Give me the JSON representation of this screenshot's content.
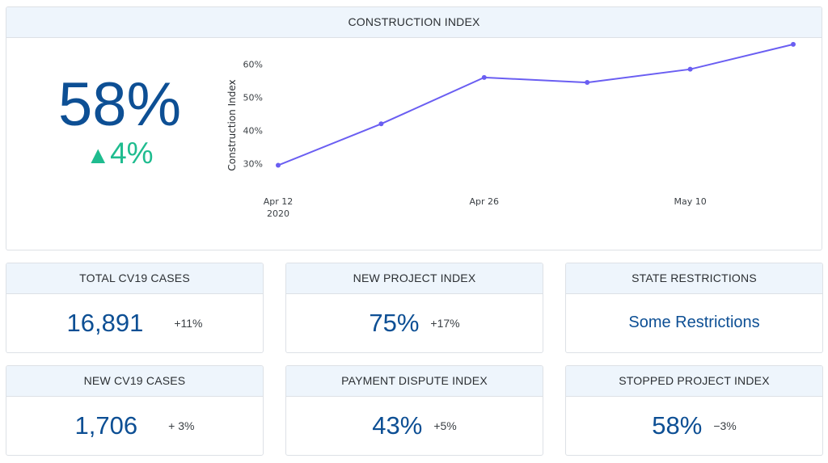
{
  "colors": {
    "accent": "#0d4f94",
    "positive": "#1fbc8f",
    "line": "#6a5ef2",
    "header_bg": "#eef5fc"
  },
  "main": {
    "title": "CONSTRUCTION INDEX",
    "value": "58%",
    "change_arrow": "▲",
    "change": "4%"
  },
  "chart_data": {
    "type": "line",
    "title": "",
    "xlabel": "",
    "ylabel": "Construction Index",
    "x": [
      "2020-04-12",
      "2020-04-19",
      "2020-04-26",
      "2020-05-03",
      "2020-05-10",
      "2020-05-17"
    ],
    "series": [
      {
        "values": [
          29.5,
          42,
          56,
          54.5,
          58.5,
          66
        ]
      }
    ],
    "xticks": [
      {
        "date": "2020-04-12",
        "label": "Apr 12",
        "sublabel": "2020"
      },
      {
        "date": "2020-04-26",
        "label": "Apr 26",
        "sublabel": ""
      },
      {
        "date": "2020-05-10",
        "label": "May 10",
        "sublabel": ""
      }
    ],
    "yticks": [
      30,
      40,
      50,
      60
    ],
    "ytick_suffix": "%",
    "grid": false,
    "legend": "none"
  },
  "cards": [
    {
      "title": "TOTAL CV19 CASES",
      "value": "16,891",
      "change": "+11%"
    },
    {
      "title": "NEW PROJECT INDEX",
      "value": "75%",
      "change": "+17%"
    },
    {
      "title": "STATE RESTRICTIONS",
      "text": "Some Restrictions"
    },
    {
      "title": "NEW CV19 CASES",
      "value": "1,706",
      "change": "+ 3%"
    },
    {
      "title": "PAYMENT DISPUTE INDEX",
      "value": "43%",
      "change": "+5%"
    },
    {
      "title": "STOPPED PROJECT INDEX",
      "value": "58%",
      "change": "−3%"
    }
  ]
}
